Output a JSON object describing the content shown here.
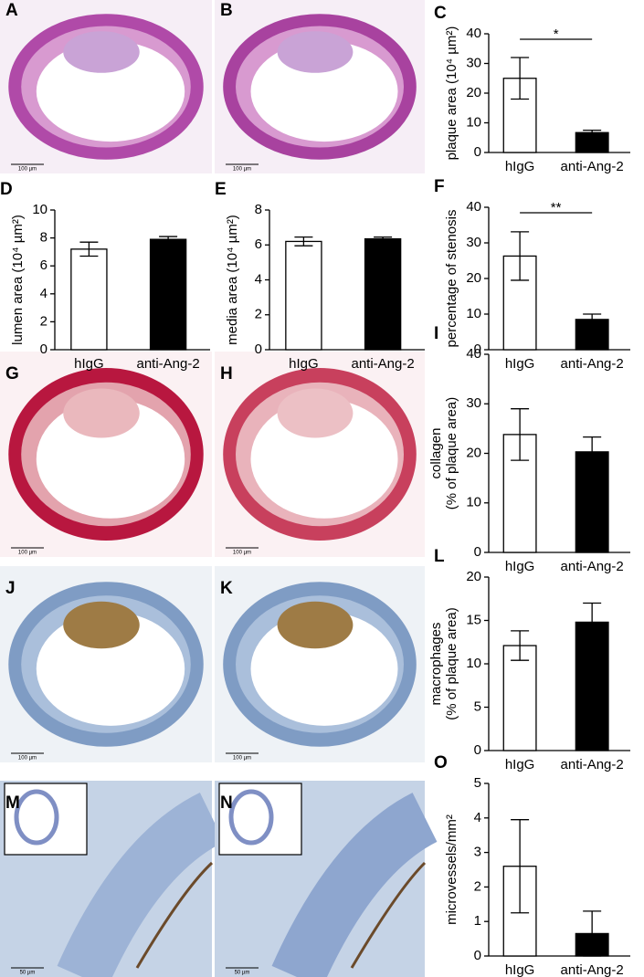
{
  "panels": [
    {
      "letter": "A",
      "scale": "100 µm"
    },
    {
      "letter": "B",
      "scale": "100 µm"
    },
    {
      "letter": "G",
      "scale": "100 µm"
    },
    {
      "letter": "H",
      "scale": "100 µm"
    },
    {
      "letter": "J",
      "scale": "100 µm"
    },
    {
      "letter": "K",
      "scale": "100 µm"
    },
    {
      "letter": "M",
      "scale": "50 µm"
    },
    {
      "letter": "N",
      "scale": "50 µm"
    }
  ],
  "chart_data": [
    {
      "type": "bar",
      "panel": "C",
      "ylabel": [
        "plaque area (10⁴ µm²)"
      ],
      "categories": [
        "hIgG",
        "anti-Ang-2"
      ],
      "values": [
        25,
        6.7
      ],
      "errors": [
        7,
        0.8
      ],
      "colors": [
        "#ffffff",
        "#000000"
      ],
      "ylim": [
        0,
        40
      ],
      "yticks": [
        0,
        10,
        20,
        30,
        40
      ],
      "significance": "*"
    },
    {
      "type": "bar",
      "panel": "D",
      "ylabel": [
        "lumen area (10⁴ µm²)"
      ],
      "categories": [
        "hIgG",
        "anti-Ang-2"
      ],
      "values": [
        7.2,
        7.9
      ],
      "errors": [
        0.5,
        0.2
      ],
      "colors": [
        "#ffffff",
        "#000000"
      ],
      "ylim": [
        0,
        10
      ],
      "yticks": [
        0,
        2,
        4,
        6,
        8,
        10
      ]
    },
    {
      "type": "bar",
      "panel": "E",
      "ylabel": [
        "media area (10⁴ µm²)"
      ],
      "categories": [
        "hIgG",
        "anti-Ang-2"
      ],
      "values": [
        6.2,
        6.35
      ],
      "errors": [
        0.25,
        0.1
      ],
      "colors": [
        "#ffffff",
        "#000000"
      ],
      "ylim": [
        0,
        8
      ],
      "yticks": [
        0,
        2,
        4,
        6,
        8
      ]
    },
    {
      "type": "bar",
      "panel": "F",
      "ylabel": [
        "percentage of stenosis"
      ],
      "categories": [
        "hIgG",
        "anti-Ang-2"
      ],
      "values": [
        26.3,
        8.5
      ],
      "errors": [
        6.8,
        1.5
      ],
      "colors": [
        "#ffffff",
        "#000000"
      ],
      "ylim": [
        0,
        40
      ],
      "yticks": [
        0,
        10,
        20,
        30,
        40
      ],
      "significance": "**"
    },
    {
      "type": "bar",
      "panel": "I",
      "ylabel": [
        "collagen",
        "(% of plaque area)"
      ],
      "categories": [
        "hIgG",
        "anti-Ang-2"
      ],
      "values": [
        23.8,
        20.3
      ],
      "errors": [
        5.2,
        3
      ],
      "colors": [
        "#ffffff",
        "#000000"
      ],
      "ylim": [
        0,
        40
      ],
      "yticks": [
        0,
        10,
        20,
        30,
        40
      ]
    },
    {
      "type": "bar",
      "panel": "L",
      "ylabel": [
        "macrophages",
        "(% of plaque area)"
      ],
      "categories": [
        "hIgG",
        "anti-Ang-2"
      ],
      "values": [
        12.1,
        14.8
      ],
      "errors": [
        1.7,
        2.2
      ],
      "colors": [
        "#ffffff",
        "#000000"
      ],
      "ylim": [
        0,
        20
      ],
      "yticks": [
        0,
        5,
        10,
        15,
        20
      ]
    },
    {
      "type": "bar",
      "panel": "O",
      "ylabel": [
        "microvessels/mm²"
      ],
      "categories": [
        "hIgG",
        "anti-Ang-2"
      ],
      "values": [
        2.6,
        0.65
      ],
      "errors": [
        1.35,
        0.65
      ],
      "colors": [
        "#ffffff",
        "#000000"
      ],
      "ylim": [
        0,
        5
      ],
      "yticks": [
        0,
        1,
        2,
        3,
        4,
        5
      ]
    }
  ]
}
